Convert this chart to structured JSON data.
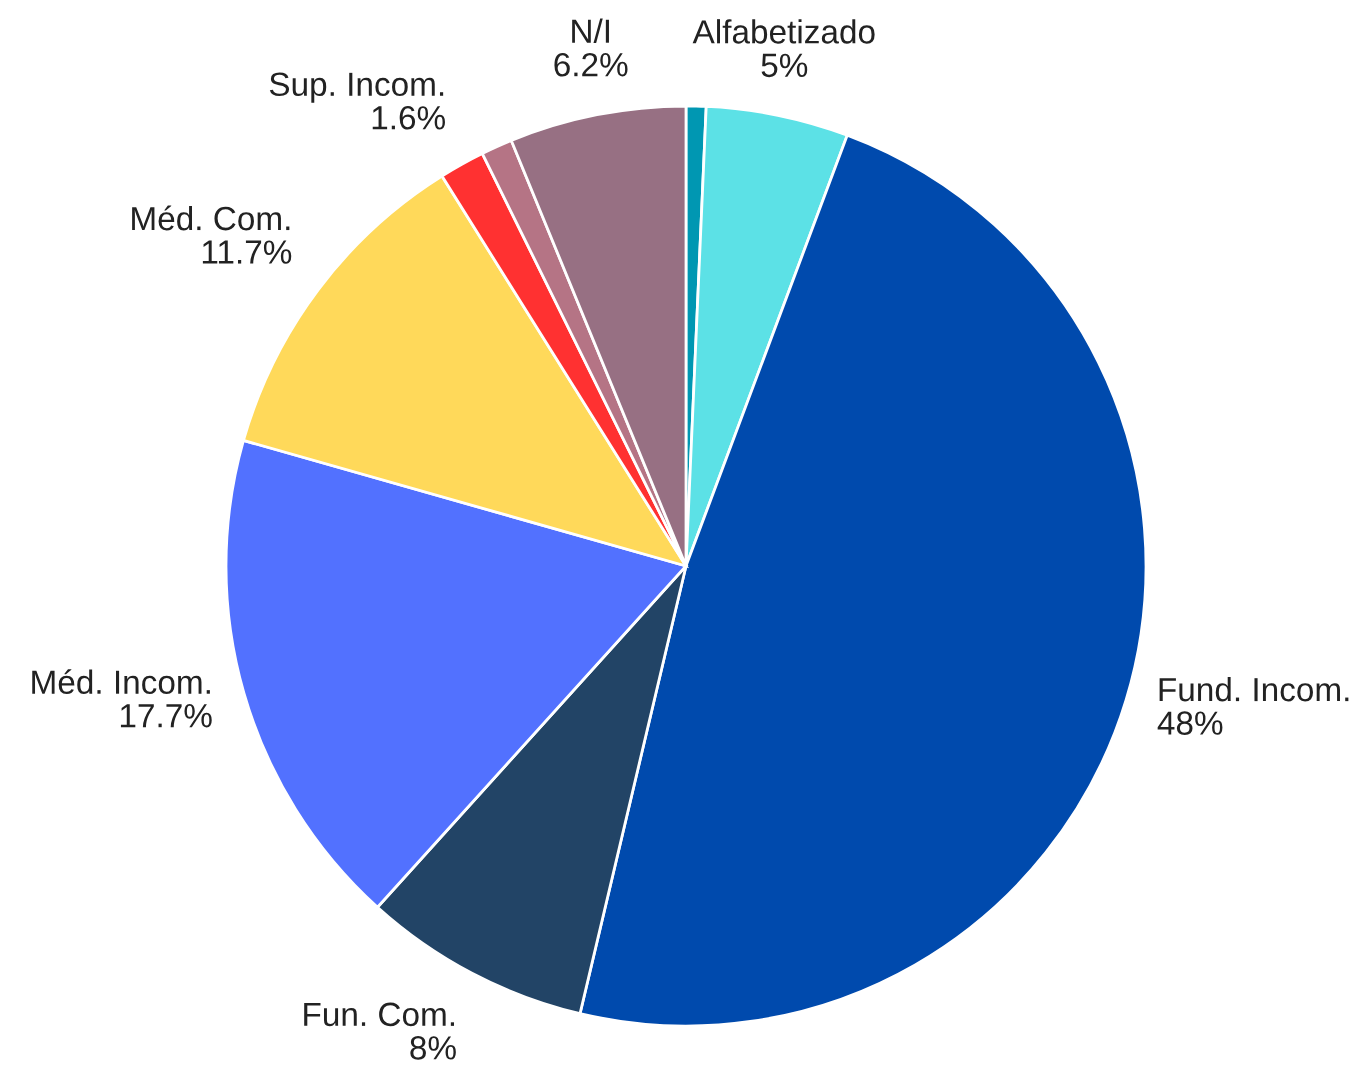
{
  "chart_data": {
    "type": "pie",
    "categories": [
      null,
      "Alfabetizado",
      "Fund. Incom.",
      "Fun. Com.",
      "Méd. Incom.",
      "Méd. Com.",
      "Sup. Incom.",
      null,
      "N/I"
    ],
    "values": [
      0.7,
      5,
      48,
      8,
      17.7,
      11.7,
      1.6,
      1.1,
      6.2
    ],
    "value_labels": [
      null,
      "5%",
      "48%",
      "8%",
      "17.7%",
      "11.7%",
      "1.6%",
      null,
      "6.2%"
    ],
    "colors": [
      "#0097b2",
      "#5ce1e6",
      "#004aad",
      "#224466",
      "#5271ff",
      "#ffd95a",
      "#ff3131",
      "#b57485",
      "#977083"
    ],
    "legend": false
  }
}
